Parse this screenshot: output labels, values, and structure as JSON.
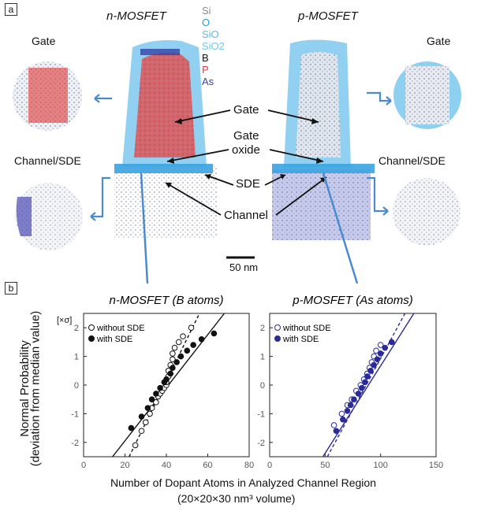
{
  "panel_a": {
    "label": "a",
    "n_title": "n-MOSFET",
    "p_title": "p-MOSFET",
    "gate_left": "Gate",
    "gate_right": "Gate",
    "channel_left": "Channel/SDE",
    "channel_right": "Channel/SDE",
    "legend": [
      {
        "text": "Si",
        "color": "#8a8a8a"
      },
      {
        "text": "O",
        "color": "#2f9be0"
      },
      {
        "text": "SiO",
        "color": "#5cb8e8"
      },
      {
        "text": "SiO2",
        "color": "#73c6ec"
      },
      {
        "text": "B",
        "color": "#111111"
      },
      {
        "text": "P",
        "color": "#e23b3b"
      },
      {
        "text": "As",
        "color": "#3b3bb0"
      }
    ],
    "annotations": {
      "gate": "Gate",
      "gate_oxide_1": "Gate",
      "gate_oxide_2": "oxide",
      "sde": "SDE",
      "channel": "Channel"
    },
    "scale_bar": "50 nm"
  },
  "panel_b": {
    "label": "b",
    "ylabel_1": "Normal Probability",
    "ylabel_2": "(deviation from median value)",
    "unit": "[×σ]",
    "xlabel_1": "Number of Dopant Atoms in Analyzed Channel Region",
    "xlabel_2": "(20×20×30 nm³ volume)"
  },
  "chart_data": [
    {
      "type": "scatter",
      "title": "n-MOSFET (B atoms)",
      "xlim": [
        0,
        80
      ],
      "ylim": [
        -2.5,
        2.5
      ],
      "xticks": [
        0,
        20,
        40,
        60,
        80
      ],
      "yticks": [
        -2,
        -1,
        0,
        1,
        2
      ],
      "series": [
        {
          "name": "without SDE",
          "marker": "open",
          "color": "#111111",
          "points": [
            [
              25,
              -2.1
            ],
            [
              28,
              -1.6
            ],
            [
              30,
              -1.3
            ],
            [
              32,
              -1.0
            ],
            [
              33,
              -0.8
            ],
            [
              35,
              -0.6
            ],
            [
              36,
              -0.4
            ],
            [
              37,
              -0.3
            ],
            [
              38,
              -0.2
            ],
            [
              39,
              -0.1
            ],
            [
              40,
              0.0
            ],
            [
              40,
              0.1
            ],
            [
              41,
              0.3
            ],
            [
              41,
              0.5
            ],
            [
              42,
              0.7
            ],
            [
              43,
              0.9
            ],
            [
              43,
              1.1
            ],
            [
              44,
              1.3
            ],
            [
              46,
              1.5
            ],
            [
              48,
              1.7
            ],
            [
              52,
              2.0
            ]
          ],
          "fit": [
            [
              22,
              -2.5
            ],
            [
              56,
              2.5
            ]
          ]
        },
        {
          "name": "with SDE",
          "marker": "filled",
          "color": "#111111",
          "points": [
            [
              23,
              -1.5
            ],
            [
              28,
              -1.1
            ],
            [
              31,
              -0.8
            ],
            [
              33,
              -0.5
            ],
            [
              35,
              -0.3
            ],
            [
              37,
              -0.1
            ],
            [
              39,
              0.1
            ],
            [
              40,
              0.2
            ],
            [
              42,
              0.4
            ],
            [
              43,
              0.6
            ],
            [
              45,
              0.8
            ],
            [
              47,
              1.0
            ],
            [
              50,
              1.2
            ],
            [
              53,
              1.4
            ],
            [
              57,
              1.6
            ],
            [
              63,
              1.8
            ]
          ],
          "fit": [
            [
              14,
              -2.5
            ],
            [
              68,
              2.5
            ]
          ]
        }
      ]
    },
    {
      "type": "scatter",
      "title": "p-MOSFET (As atoms)",
      "xlim": [
        0,
        150
      ],
      "ylim": [
        -2.5,
        2.5
      ],
      "xticks": [
        0,
        50,
        100,
        150
      ],
      "yticks": [
        -2,
        -1,
        0,
        1,
        2
      ],
      "series": [
        {
          "name": "without SDE",
          "marker": "open",
          "color": "#2a2a9a",
          "points": [
            [
              58,
              -1.4
            ],
            [
              65,
              -1.0
            ],
            [
              70,
              -0.7
            ],
            [
              74,
              -0.5
            ],
            [
              78,
              -0.2
            ],
            [
              82,
              0.0
            ],
            [
              85,
              0.2
            ],
            [
              88,
              0.4
            ],
            [
              90,
              0.6
            ],
            [
              92,
              0.8
            ],
            [
              94,
              1.0
            ],
            [
              96,
              1.2
            ],
            [
              100,
              1.4
            ]
          ],
          "fit": [
            [
              52,
              -2.5
            ],
            [
              122,
              2.5
            ]
          ]
        },
        {
          "name": "with SDE",
          "marker": "filled",
          "color": "#2a2a9a",
          "points": [
            [
              60,
              -1.6
            ],
            [
              66,
              -1.2
            ],
            [
              70,
              -0.9
            ],
            [
              73,
              -0.7
            ],
            [
              76,
              -0.5
            ],
            [
              80,
              -0.3
            ],
            [
              83,
              -0.1
            ],
            [
              86,
              0.1
            ],
            [
              88,
              0.3
            ],
            [
              91,
              0.5
            ],
            [
              94,
              0.7
            ],
            [
              97,
              0.9
            ],
            [
              100,
              1.1
            ],
            [
              104,
              1.3
            ],
            [
              110,
              1.5
            ]
          ],
          "fit": [
            [
              48,
              -2.5
            ],
            [
              130,
              2.5
            ]
          ]
        }
      ]
    }
  ]
}
